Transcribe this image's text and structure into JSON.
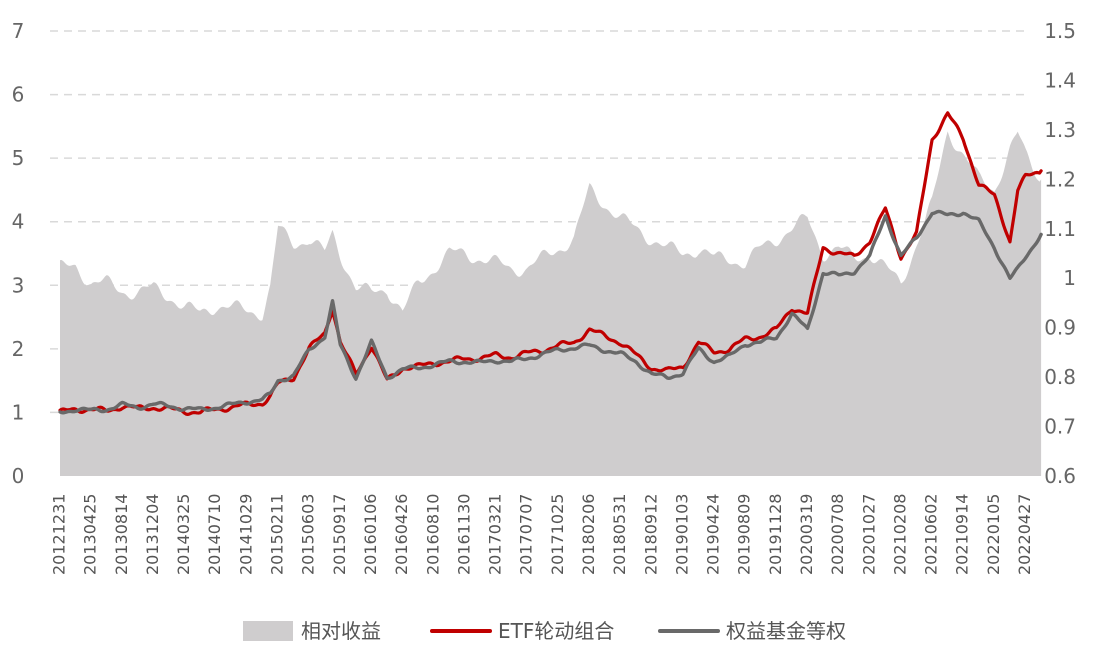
{
  "chart_data": {
    "type": "line",
    "title": "",
    "xlabel": "",
    "ylabel": "",
    "y2label": "",
    "left_axis": {
      "ylim": [
        0,
        7
      ],
      "ticks": [
        "0",
        "1",
        "2",
        "3",
        "4",
        "5",
        "6",
        "7"
      ]
    },
    "right_axis": {
      "ylim": [
        0.6,
        1.5
      ],
      "ticks": [
        "0.6",
        "0.7",
        "0.8",
        "0.9",
        "1",
        "1.1",
        "1.2",
        "1.3",
        "1.4",
        "1.5"
      ]
    },
    "x_ticks": [
      "20121231",
      "20130425",
      "20130814",
      "20131204",
      "20140325",
      "20140710",
      "20141029",
      "20150211",
      "20150603",
      "20150917",
      "20160106",
      "20160426",
      "20160810",
      "20161130",
      "20170321",
      "20170707",
      "20171025",
      "20180206",
      "20180531",
      "20180912",
      "20190103",
      "20190424",
      "20190809",
      "20191128",
      "20200319",
      "20200708",
      "20201027",
      "20210208",
      "20210602",
      "20210914",
      "20220105",
      "20220427"
    ],
    "grid": "horizontal-dashed",
    "legend_position": "bottom",
    "series": [
      {
        "name": "相对收益",
        "type": "area",
        "axis": "right",
        "color": "#cfcdce",
        "points": [
          [
            0,
            1.02
          ],
          [
            0.5,
            1.025
          ],
          [
            1,
            0.99
          ],
          [
            1.5,
            0.99
          ],
          [
            2,
            0.975
          ],
          [
            2.5,
            0.97
          ],
          [
            3,
            0.98
          ],
          [
            3.5,
            0.965
          ],
          [
            4,
            0.94
          ],
          [
            4.5,
            0.93
          ],
          [
            5,
            0.945
          ],
          [
            5.5,
            0.94
          ],
          [
            6,
            0.935
          ],
          [
            6.5,
            0.93
          ],
          [
            6.75,
            0.98
          ],
          [
            7,
            1.1
          ],
          [
            7.5,
            1.07
          ],
          [
            8,
            1.08
          ],
          [
            8.5,
            1.05
          ],
          [
            8.75,
            1.09
          ],
          [
            9,
            1.05
          ],
          [
            9.5,
            0.98
          ],
          [
            10,
            0.97
          ],
          [
            10.5,
            0.98
          ],
          [
            11,
            0.93
          ],
          [
            11.5,
            0.99
          ],
          [
            12,
            1.02
          ],
          [
            12.5,
            1.05
          ],
          [
            13,
            1.05
          ],
          [
            13.5,
            1.04
          ],
          [
            14,
            1.03
          ],
          [
            14.5,
            1.02
          ],
          [
            15,
            1.02
          ],
          [
            15.5,
            1.04
          ],
          [
            16,
            1.06
          ],
          [
            16.5,
            1.08
          ],
          [
            17,
            1.18
          ],
          [
            17.5,
            1.15
          ],
          [
            18,
            1.12
          ],
          [
            18.5,
            1.1
          ],
          [
            19,
            1.08
          ],
          [
            19.5,
            1.06
          ],
          [
            20,
            1.05
          ],
          [
            20.5,
            1.06
          ],
          [
            21,
            1.04
          ],
          [
            21.5,
            1.04
          ],
          [
            22,
            1.03
          ],
          [
            22.5,
            1.06
          ],
          [
            23,
            1.08
          ],
          [
            23.5,
            1.1
          ],
          [
            24,
            1.12
          ],
          [
            24.5,
            1.05
          ],
          [
            25,
            1.06
          ],
          [
            25.5,
            1.04
          ],
          [
            26,
            1.05
          ],
          [
            26.5,
            1.02
          ],
          [
            27,
            0.99
          ],
          [
            27.5,
            1.07
          ],
          [
            28,
            1.15
          ],
          [
            28.5,
            1.3
          ],
          [
            29,
            1.25
          ],
          [
            29.5,
            1.2
          ],
          [
            30,
            1.18
          ],
          [
            30.5,
            1.26
          ],
          [
            30.75,
            1.29
          ],
          [
            31,
            1.25
          ],
          [
            31.5,
            1.2
          ]
        ]
      },
      {
        "name": "ETF轮动组合",
        "type": "line",
        "axis": "left",
        "color": "#c00000",
        "points": [
          [
            0,
            1.0
          ],
          [
            0.5,
            1.05
          ],
          [
            1,
            1.05
          ],
          [
            1.5,
            1.02
          ],
          [
            2,
            1.1
          ],
          [
            2.5,
            1.06
          ],
          [
            3,
            1.08
          ],
          [
            3.5,
            1.05
          ],
          [
            4,
            1.02
          ],
          [
            4.5,
            1.0
          ],
          [
            5,
            1.05
          ],
          [
            5.5,
            1.08
          ],
          [
            6,
            1.12
          ],
          [
            6.5,
            1.15
          ],
          [
            6.75,
            1.25
          ],
          [
            7,
            1.45
          ],
          [
            7.5,
            1.55
          ],
          [
            8,
            2.0
          ],
          [
            8.5,
            2.25
          ],
          [
            8.75,
            2.65
          ],
          [
            9,
            2.1
          ],
          [
            9.5,
            1.6
          ],
          [
            10,
            2.05
          ],
          [
            10.5,
            1.5
          ],
          [
            11,
            1.7
          ],
          [
            11.5,
            1.72
          ],
          [
            12,
            1.78
          ],
          [
            12.5,
            1.8
          ],
          [
            13,
            1.85
          ],
          [
            13.5,
            1.85
          ],
          [
            14,
            1.9
          ],
          [
            14.5,
            1.87
          ],
          [
            15,
            1.93
          ],
          [
            15.5,
            1.98
          ],
          [
            16,
            2.05
          ],
          [
            16.5,
            2.1
          ],
          [
            17,
            2.3
          ],
          [
            17.5,
            2.2
          ],
          [
            18,
            2.1
          ],
          [
            18.5,
            1.9
          ],
          [
            19,
            1.7
          ],
          [
            19.5,
            1.65
          ],
          [
            20,
            1.72
          ],
          [
            20.5,
            2.1
          ],
          [
            21,
            1.95
          ],
          [
            21.5,
            2.0
          ],
          [
            22,
            2.15
          ],
          [
            22.5,
            2.2
          ],
          [
            23,
            2.3
          ],
          [
            23.5,
            2.65
          ],
          [
            24,
            2.55
          ],
          [
            24.5,
            3.6
          ],
          [
            25,
            3.5
          ],
          [
            25.5,
            3.45
          ],
          [
            26,
            3.7
          ],
          [
            26.5,
            4.2
          ],
          [
            27,
            3.45
          ],
          [
            27.5,
            3.8
          ],
          [
            28,
            5.3
          ],
          [
            28.5,
            5.7
          ],
          [
            29,
            5.3
          ],
          [
            29.5,
            4.6
          ],
          [
            30,
            4.4
          ],
          [
            30.5,
            3.7
          ],
          [
            30.75,
            4.5
          ],
          [
            31,
            4.7
          ],
          [
            31.5,
            4.8
          ]
        ]
      },
      {
        "name": "权益基金等权",
        "type": "line",
        "axis": "left",
        "color": "#696969",
        "points": [
          [
            0,
            1.0
          ],
          [
            0.5,
            1.05
          ],
          [
            1,
            1.03
          ],
          [
            1.5,
            1.05
          ],
          [
            2,
            1.12
          ],
          [
            2.5,
            1.08
          ],
          [
            3,
            1.13
          ],
          [
            3.5,
            1.1
          ],
          [
            4,
            1.06
          ],
          [
            4.5,
            1.04
          ],
          [
            5,
            1.08
          ],
          [
            5.5,
            1.12
          ],
          [
            6,
            1.17
          ],
          [
            6.5,
            1.2
          ],
          [
            6.75,
            1.28
          ],
          [
            7,
            1.5
          ],
          [
            7.5,
            1.58
          ],
          [
            8,
            1.98
          ],
          [
            8.5,
            2.2
          ],
          [
            8.75,
            2.73
          ],
          [
            9,
            2.05
          ],
          [
            9.5,
            1.55
          ],
          [
            10,
            2.1
          ],
          [
            10.5,
            1.55
          ],
          [
            11,
            1.68
          ],
          [
            11.5,
            1.7
          ],
          [
            12,
            1.75
          ],
          [
            12.5,
            1.8
          ],
          [
            13,
            1.8
          ],
          [
            13.5,
            1.78
          ],
          [
            14,
            1.82
          ],
          [
            14.5,
            1.8
          ],
          [
            15,
            1.85
          ],
          [
            15.5,
            1.92
          ],
          [
            16,
            1.98
          ],
          [
            16.5,
            2.02
          ],
          [
            17,
            2.05
          ],
          [
            17.5,
            1.98
          ],
          [
            18,
            1.92
          ],
          [
            18.5,
            1.8
          ],
          [
            19,
            1.6
          ],
          [
            19.5,
            1.55
          ],
          [
            20,
            1.62
          ],
          [
            20.5,
            2.0
          ],
          [
            21,
            1.8
          ],
          [
            21.5,
            1.88
          ],
          [
            22,
            2.08
          ],
          [
            22.5,
            2.1
          ],
          [
            23,
            2.18
          ],
          [
            23.5,
            2.55
          ],
          [
            24,
            2.3
          ],
          [
            24.5,
            3.2
          ],
          [
            25,
            3.15
          ],
          [
            25.5,
            3.22
          ],
          [
            26,
            3.45
          ],
          [
            26.5,
            4.1
          ],
          [
            27,
            3.45
          ],
          [
            27.5,
            3.75
          ],
          [
            28,
            4.15
          ],
          [
            28.5,
            4.1
          ],
          [
            29,
            4.15
          ],
          [
            29.5,
            4.0
          ],
          [
            30,
            3.6
          ],
          [
            30.5,
            3.1
          ],
          [
            30.75,
            3.25
          ],
          [
            31,
            3.45
          ],
          [
            31.5,
            3.8
          ]
        ]
      }
    ]
  }
}
